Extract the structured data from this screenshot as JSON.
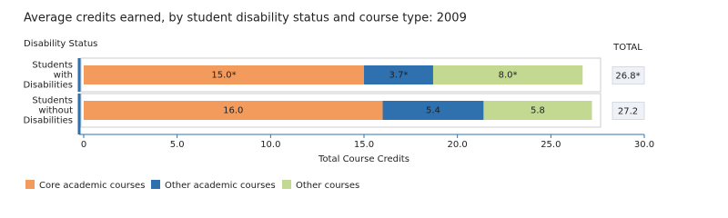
{
  "chart_data": {
    "type": "bar",
    "orientation": "horizontal",
    "stacked": true,
    "title": "Average credits earned, by student disability status and course type: 2009",
    "y_label": "Disability Status",
    "x_label": "Total Course Credits",
    "categories": [
      "Students with Disabilities",
      "Students without Disabilities"
    ],
    "series": [
      {
        "name": "Core academic courses",
        "color": "#f29b5c",
        "values": [
          15.0,
          16.0
        ],
        "value_labels": [
          "15.0*",
          "16.0"
        ]
      },
      {
        "name": "Other academic courses",
        "color": "#2f70ae",
        "values": [
          3.7,
          5.4
        ],
        "value_labels": [
          "3.7*",
          "5.4"
        ]
      },
      {
        "name": "Other courses",
        "color": "#c3d991",
        "values": [
          8.0,
          5.8
        ],
        "value_labels": [
          "8.0*",
          "5.8"
        ]
      }
    ],
    "totals": {
      "label": "TOTAL",
      "values": [
        26.8,
        27.2
      ],
      "value_labels": [
        "26.8*",
        "27.2"
      ]
    },
    "xlim": [
      0,
      30
    ],
    "xticks": [
      0,
      {
        "value": 5,
        "label": "5.0"
      },
      {
        "value": 10,
        "label": "10.0"
      },
      {
        "value": 15,
        "label": "15.0"
      },
      {
        "value": 20,
        "label": "20.0"
      },
      {
        "value": 25,
        "label": "25.0"
      },
      {
        "value": 30,
        "label": "30.0"
      }
    ],
    "legend": "bottom-left"
  }
}
